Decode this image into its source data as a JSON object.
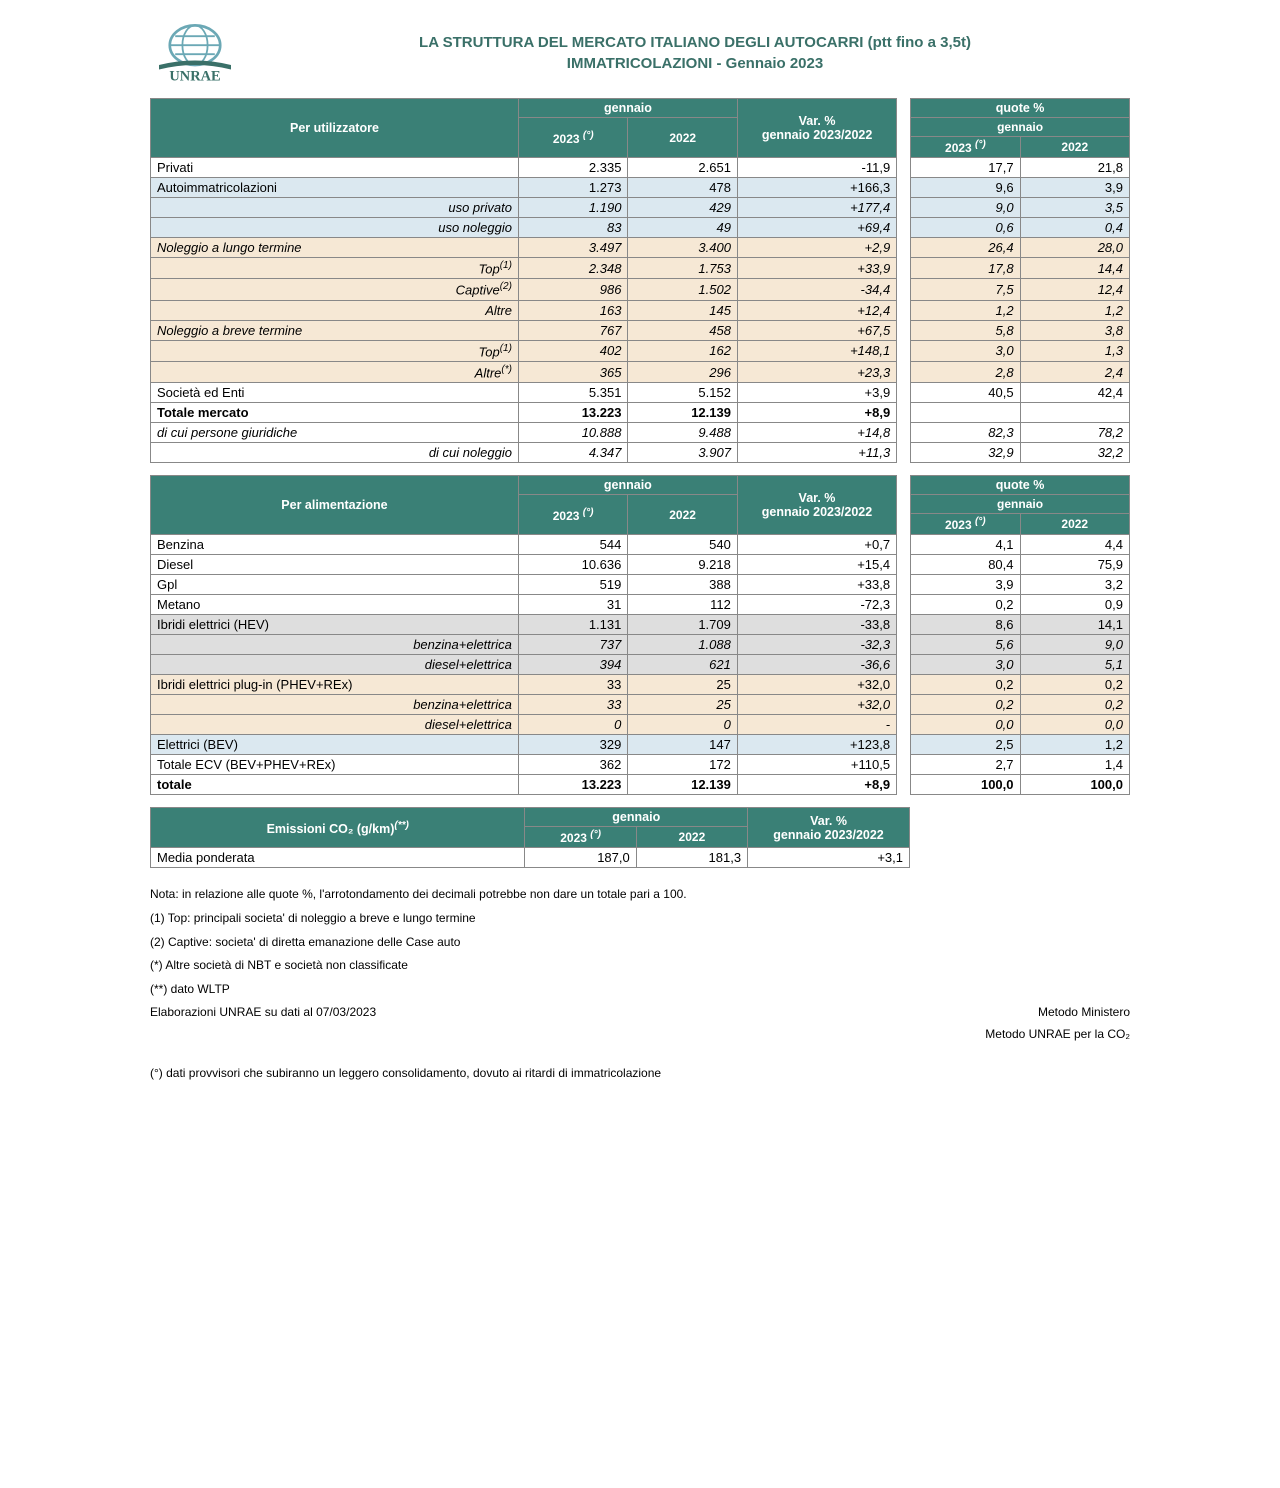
{
  "colors": {
    "header_teal": "#3a8076",
    "row_blue": "#dbe8f0",
    "row_tan": "#f6e8d5",
    "row_gray": "#dedede",
    "title_teal": "#3a7068"
  },
  "title": {
    "line1": "LA STRUTTURA DEL MERCATO ITALIANO DEGLI AUTOCARRI (ptt fino a 3,5t)",
    "line2": "IMMATRICOLAZIONI - Gennaio 2023"
  },
  "table1": {
    "header": {
      "group_label": "Per utilizzatore",
      "period": "gennaio",
      "year_current": "2023 ",
      "year_current_sup": "(°)",
      "year_prev": "2022",
      "var_label": "Var. %\ngennaio 2023/2022",
      "quote_top": "quote %",
      "quote_period": "gennaio"
    },
    "rows": [
      {
        "cls": "",
        "label": "Privati",
        "align": "left",
        "c23": "2.335",
        "c22": "2.651",
        "var": "-11,9",
        "q23": "17,7",
        "q22": "21,8",
        "ital": false
      },
      {
        "cls": "row-blue",
        "label": "Autoimmatricolazioni",
        "align": "left",
        "c23": "1.273",
        "c22": "478",
        "var": "+166,3",
        "q23": "9,6",
        "q22": "3,9",
        "ital": false
      },
      {
        "cls": "row-blue",
        "label": "uso privato",
        "align": "right",
        "c23": "1.190",
        "c22": "429",
        "var": "+177,4",
        "q23": "9,0",
        "q22": "3,5",
        "ital": true
      },
      {
        "cls": "row-blue",
        "label": "uso noleggio",
        "align": "right",
        "c23": "83",
        "c22": "49",
        "var": "+69,4",
        "q23": "0,6",
        "q22": "0,4",
        "ital": true
      },
      {
        "cls": "row-tan",
        "label": "Noleggio a lungo termine",
        "align": "left",
        "c23": "3.497",
        "c22": "3.400",
        "var": "+2,9",
        "q23": "26,4",
        "q22": "28,0",
        "ital": true
      },
      {
        "cls": "row-tan",
        "label": "Top",
        "sup": "(1)",
        "align": "right",
        "c23": "2.348",
        "c22": "1.753",
        "var": "+33,9",
        "q23": "17,8",
        "q22": "14,4",
        "ital": true
      },
      {
        "cls": "row-tan",
        "label": "Captive",
        "sup": "(2)",
        "align": "right",
        "c23": "986",
        "c22": "1.502",
        "var": "-34,4",
        "q23": "7,5",
        "q22": "12,4",
        "ital": true
      },
      {
        "cls": "row-tan",
        "label": "Altre",
        "align": "right",
        "c23": "163",
        "c22": "145",
        "var": "+12,4",
        "q23": "1,2",
        "q22": "1,2",
        "ital": true
      },
      {
        "cls": "row-tan",
        "label": "Noleggio a breve termine",
        "align": "left",
        "c23": "767",
        "c22": "458",
        "var": "+67,5",
        "q23": "5,8",
        "q22": "3,8",
        "ital": true
      },
      {
        "cls": "row-tan",
        "label": "Top",
        "sup": "(1)",
        "align": "right",
        "c23": "402",
        "c22": "162",
        "var": "+148,1",
        "q23": "3,0",
        "q22": "1,3",
        "ital": true
      },
      {
        "cls": "row-tan",
        "label": "Altre",
        "sup": "(*)",
        "align": "right",
        "c23": "365",
        "c22": "296",
        "var": "+23,3",
        "q23": "2,8",
        "q22": "2,4",
        "ital": true
      },
      {
        "cls": "",
        "label": "Società ed Enti",
        "align": "left",
        "c23": "5.351",
        "c22": "5.152",
        "var": "+3,9",
        "q23": "40,5",
        "q22": "42,4",
        "ital": false
      },
      {
        "cls": "",
        "label": "Totale mercato",
        "align": "left",
        "c23": "13.223",
        "c22": "12.139",
        "var": "+8,9",
        "q23": "",
        "q22": "",
        "bold": true
      },
      {
        "cls": "",
        "label": "di cui persone giuridiche",
        "align": "left",
        "c23": "10.888",
        "c22": "9.488",
        "var": "+14,8",
        "q23": "82,3",
        "q22": "78,2",
        "ital": true
      },
      {
        "cls": "",
        "label": "di cui noleggio",
        "align": "right",
        "c23": "4.347",
        "c22": "3.907",
        "var": "+11,3",
        "q23": "32,9",
        "q22": "32,2",
        "ital": true
      }
    ]
  },
  "table2": {
    "header": {
      "group_label": "Per alimentazione",
      "period": "gennaio",
      "year_current": "2023 ",
      "year_current_sup": "(°)",
      "year_prev": "2022",
      "var_label": "Var. %\ngennaio 2023/2022",
      "quote_top": "quote %",
      "quote_period": "gennaio"
    },
    "rows": [
      {
        "cls": "",
        "label": "Benzina",
        "align": "left",
        "c23": "544",
        "c22": "540",
        "var": "+0,7",
        "q23": "4,1",
        "q22": "4,4"
      },
      {
        "cls": "",
        "label": "Diesel",
        "align": "left",
        "c23": "10.636",
        "c22": "9.218",
        "var": "+15,4",
        "q23": "80,4",
        "q22": "75,9"
      },
      {
        "cls": "",
        "label": "Gpl",
        "align": "left",
        "c23": "519",
        "c22": "388",
        "var": "+33,8",
        "q23": "3,9",
        "q22": "3,2"
      },
      {
        "cls": "",
        "label": "Metano",
        "align": "left",
        "c23": "31",
        "c22": "112",
        "var": "-72,3",
        "q23": "0,2",
        "q22": "0,9"
      },
      {
        "cls": "row-gray",
        "label": "Ibridi elettrici (HEV)",
        "align": "left",
        "c23": "1.131",
        "c22": "1.709",
        "var": "-33,8",
        "q23": "8,6",
        "q22": "14,1"
      },
      {
        "cls": "row-gray",
        "label": "benzina+elettrica",
        "align": "right",
        "c23": "737",
        "c22": "1.088",
        "var": "-32,3",
        "q23": "5,6",
        "q22": "9,0",
        "ital": true
      },
      {
        "cls": "row-gray",
        "label": "diesel+elettrica",
        "align": "right",
        "c23": "394",
        "c22": "621",
        "var": "-36,6",
        "q23": "3,0",
        "q22": "5,1",
        "ital": true
      },
      {
        "cls": "row-tan",
        "label": "Ibridi elettrici plug-in (PHEV+REx)",
        "align": "left",
        "c23": "33",
        "c22": "25",
        "var": "+32,0",
        "q23": "0,2",
        "q22": "0,2"
      },
      {
        "cls": "row-tan",
        "label": "benzina+elettrica",
        "align": "right",
        "c23": "33",
        "c22": "25",
        "var": "+32,0",
        "q23": "0,2",
        "q22": "0,2",
        "ital": true
      },
      {
        "cls": "row-tan",
        "label": "diesel+elettrica",
        "align": "right",
        "c23": "0",
        "c22": "0",
        "var": "-",
        "q23": "0,0",
        "q22": "0,0",
        "ital": true
      },
      {
        "cls": "row-blue",
        "label": "Elettrici (BEV)",
        "align": "left",
        "c23": "329",
        "c22": "147",
        "var": "+123,8",
        "q23": "2,5",
        "q22": "1,2"
      },
      {
        "cls": "",
        "label": "Totale ECV (BEV+PHEV+REx)",
        "align": "left",
        "c23": "362",
        "c22": "172",
        "var": "+110,5",
        "q23": "2,7",
        "q22": "1,4"
      },
      {
        "cls": "",
        "label": "totale",
        "align": "left",
        "c23": "13.223",
        "c22": "12.139",
        "var": "+8,9",
        "q23": "100,0",
        "q22": "100,0",
        "bold": true
      }
    ]
  },
  "table3": {
    "header": {
      "group_label": "Emissioni CO₂ (g/km)",
      "group_sup": "(**)",
      "period": "gennaio",
      "year_current": "2023 ",
      "year_current_sup": "(°)",
      "year_prev": "2022",
      "var_label": "Var. %\ngennaio 2023/2022"
    },
    "rows": [
      {
        "label": "Media ponderata",
        "c23": "187,0",
        "c22": "181,3",
        "var": "+3,1"
      }
    ]
  },
  "notes": {
    "n1": "Nota: in relazione alle quote %, l'arrotondamento dei decimali potrebbe non dare un totale pari a 100.",
    "n2": "(1) Top: principali societa' di noleggio a breve e lungo termine",
    "n3": "(2) Captive: societa' di diretta emanazione delle Case auto",
    "n4": "(*) Altre società di NBT e società non classificate",
    "n5": "(**) dato WLTP",
    "elab": "Elaborazioni UNRAE su dati al 07/03/2023",
    "right1": "Metodo Ministero",
    "right2": "Metodo UNRAE per la CO₂",
    "n6": "(°) dati provvisori che subiranno un leggero consolidamento, dovuto ai ritardi di immatricolazione"
  }
}
